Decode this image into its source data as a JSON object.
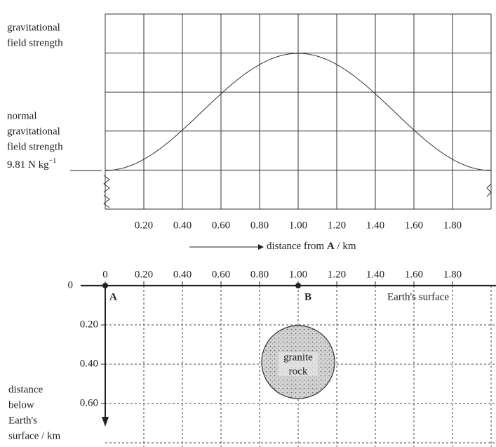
{
  "top_graph": {
    "y_axis_label": [
      "gravitational",
      "field strength"
    ],
    "normal_label": [
      "normal",
      "gravitational",
      "field strength"
    ],
    "normal_value": "9.81 N kg",
    "normal_unit_power": "−1",
    "x_ticks": [
      "0.20",
      "0.40",
      "0.60",
      "0.80",
      "1.00",
      "1.20",
      "1.40",
      "1.60",
      "1.80"
    ],
    "x_axis_label": {
      "before": "distance from ",
      "bold": "A",
      "after": " / km"
    }
  },
  "bottom_diagram": {
    "x_ticks": [
      "0",
      "0.20",
      "0.40",
      "0.60",
      "0.80",
      "1.00",
      "1.20",
      "1.40",
      "1.60",
      "1.80"
    ],
    "depth_ticks": [
      "0",
      "0.20",
      "0.40",
      "0.60"
    ],
    "point_a": "A",
    "point_b": "B",
    "surface_label": "Earth's surface",
    "rock_label": [
      "granite",
      "rock"
    ],
    "depth_label": [
      "distance",
      "below",
      "Earth's",
      "surface / km"
    ]
  }
}
